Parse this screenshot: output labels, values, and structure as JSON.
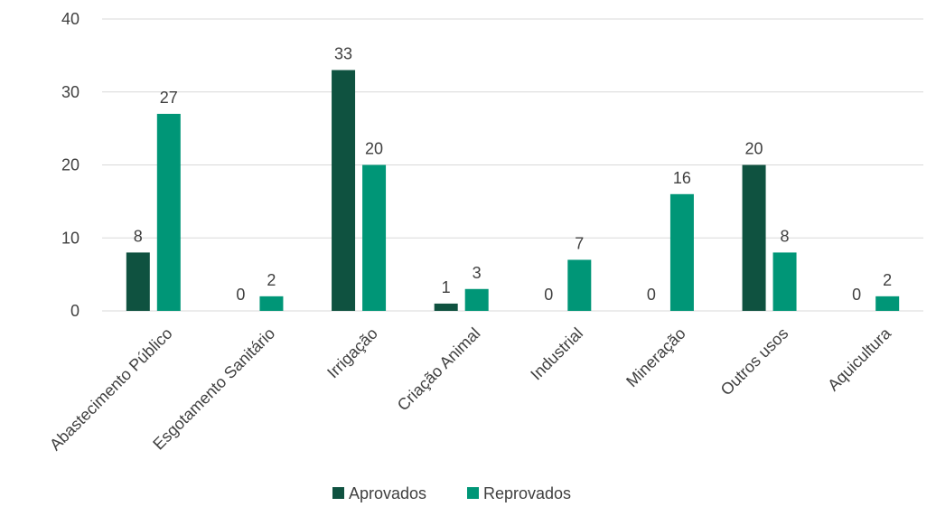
{
  "chart_data": {
    "type": "bar",
    "title": "",
    "xlabel": "",
    "ylabel": "",
    "ylim": [
      0,
      40
    ],
    "yticks": [
      0,
      10,
      20,
      30,
      40
    ],
    "grid": true,
    "legend_position": "bottom",
    "categories": [
      "Abastecimento Público",
      "Esgotamento Sanitário",
      "Irrigação",
      "Criação Animal",
      "Industrial",
      "Mineração",
      "Outros usos",
      "Aquicultura"
    ],
    "series": [
      {
        "name": "Aprovados",
        "color": "#0f5240",
        "values": [
          8,
          0,
          33,
          1,
          0,
          0,
          20,
          0
        ]
      },
      {
        "name": "Reprovados",
        "color": "#009677",
        "values": [
          27,
          2,
          20,
          3,
          7,
          16,
          8,
          2
        ]
      }
    ]
  }
}
